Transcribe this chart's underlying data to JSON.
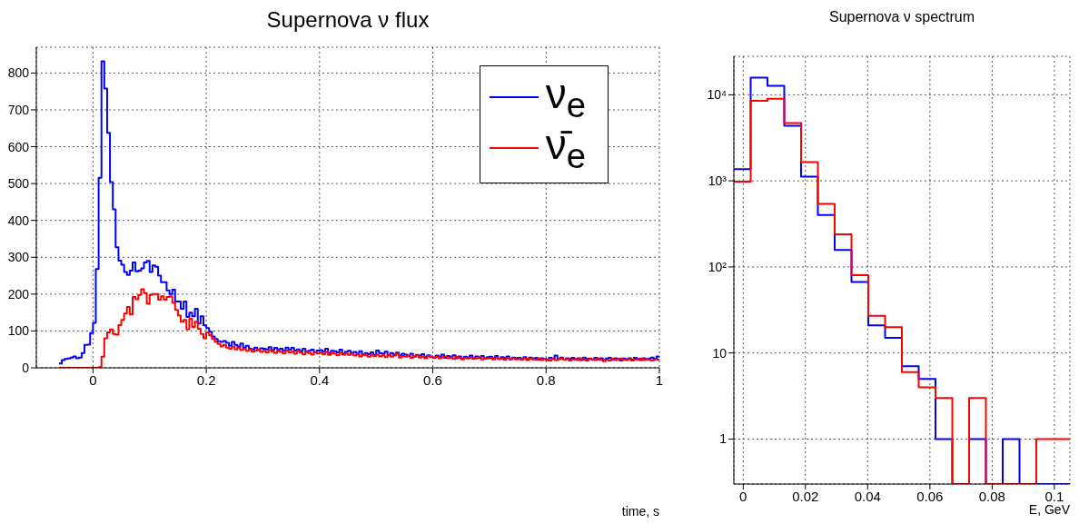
{
  "chart_data": [
    {
      "type": "histogram",
      "title": "Supernova ν flux",
      "xlabel": "time, s",
      "grid": true,
      "legend": "top right",
      "bins": [
        -0.06,
        -0.055,
        -0.05,
        -0.045,
        -0.04,
        -0.035,
        -0.03,
        -0.025,
        -0.02,
        -0.015,
        -0.01,
        -0.005,
        0,
        0.005,
        0.01,
        0.015,
        0.02,
        0.025,
        0.03,
        0.035,
        0.04,
        0.045,
        0.05,
        0.055,
        0.06,
        0.065,
        0.07,
        0.075,
        0.08,
        0.085,
        0.09,
        0.095,
        0.1,
        0.105,
        0.11,
        0.115,
        0.12,
        0.125,
        0.13,
        0.135,
        0.14,
        0.145,
        0.15,
        0.155,
        0.16,
        0.165,
        0.17,
        0.175,
        0.18,
        0.185,
        0.19,
        0.195,
        0.2,
        0.205,
        0.21,
        0.215,
        0.22,
        0.225,
        0.23,
        0.235,
        0.24,
        0.245,
        0.25,
        0.255,
        0.26,
        0.265,
        0.27,
        0.275,
        0.28,
        0.285,
        0.29,
        0.295,
        0.3,
        0.305,
        0.31,
        0.315,
        0.32,
        0.325,
        0.33,
        0.335,
        0.34,
        0.345,
        0.35,
        0.355,
        0.36,
        0.365,
        0.37,
        0.375,
        0.38,
        0.385,
        0.39,
        0.395,
        0.4,
        0.405,
        0.41,
        0.415,
        0.42,
        0.425,
        0.43,
        0.435,
        0.44,
        0.445,
        0.45,
        0.455,
        0.46,
        0.465,
        0.47,
        0.475,
        0.48,
        0.485,
        0.49,
        0.495,
        0.5,
        0.505,
        0.51,
        0.515,
        0.52,
        0.525,
        0.53,
        0.535,
        0.54,
        0.545,
        0.55,
        0.555,
        0.56,
        0.565,
        0.57,
        0.575,
        0.58,
        0.585,
        0.59,
        0.595,
        0.6,
        0.605,
        0.61,
        0.615,
        0.62,
        0.625,
        0.63,
        0.635,
        0.64,
        0.645,
        0.65,
        0.655,
        0.66,
        0.665,
        0.67,
        0.675,
        0.68,
        0.685,
        0.69,
        0.695,
        0.7,
        0.705,
        0.71,
        0.715,
        0.72,
        0.725,
        0.73,
        0.735,
        0.74,
        0.745,
        0.75,
        0.755,
        0.76,
        0.765,
        0.77,
        0.775,
        0.78,
        0.785,
        0.79,
        0.795,
        0.8,
        0.805,
        0.81,
        0.815,
        0.82,
        0.825,
        0.83,
        0.835,
        0.84,
        0.845,
        0.85,
        0.855,
        0.86,
        0.865,
        0.87,
        0.875,
        0.88,
        0.885,
        0.89,
        0.895,
        0.9,
        0.905,
        0.91,
        0.915,
        0.92,
        0.925,
        0.93,
        0.935,
        0.94,
        0.945,
        0.95,
        0.955,
        0.96,
        0.965,
        0.97,
        0.975,
        0.98,
        0.985,
        0.99,
        0.995,
        1
      ],
      "series": [
        {
          "name": "ν$_{e}$",
          "color": "#0000ff",
          "values": [
            12,
            21,
            24,
            25,
            28,
            31,
            26,
            28,
            40,
            62,
            63,
            94,
            122,
            268,
            516,
            832,
            758,
            638,
            504,
            430,
            327,
            291,
            280,
            260,
            252,
            264,
            286,
            262,
            264,
            270,
            286,
            290,
            260,
            278,
            274,
            250,
            232,
            232,
            210,
            200,
            212,
            180,
            180,
            160,
            180,
            138,
            150,
            140,
            160,
            120,
            140,
            115,
            108,
            98,
            85,
            78,
            72,
            70,
            73,
            68,
            60,
            70,
            62,
            58,
            66,
            55,
            60,
            52,
            50,
            55,
            48,
            53,
            52,
            50,
            56,
            48,
            54,
            50,
            52,
            46,
            55,
            49,
            54,
            47,
            50,
            45,
            52,
            44,
            46,
            49,
            42,
            47,
            48,
            44,
            52,
            40,
            46,
            45,
            42,
            49,
            38,
            44,
            46,
            40,
            43,
            38,
            45,
            36,
            40,
            37,
            42,
            35,
            47,
            40,
            38,
            44,
            34,
            40,
            36,
            41,
            33,
            38,
            36,
            32,
            38,
            30,
            35,
            33,
            37,
            29,
            34,
            31,
            28,
            33,
            30,
            36,
            27,
            32,
            29,
            34,
            26,
            31,
            25,
            30,
            28,
            33,
            26,
            31,
            27,
            32,
            25,
            29,
            30,
            26,
            32,
            24,
            29,
            27,
            31,
            23,
            28,
            26,
            27,
            24,
            29,
            23,
            28,
            25,
            27,
            22,
            26,
            24,
            21,
            27,
            25,
            33,
            24,
            28,
            22,
            26,
            24,
            27,
            23,
            26,
            21,
            28,
            24,
            25,
            22,
            27,
            23,
            26,
            21,
            25,
            27,
            22,
            26,
            24,
            20,
            25,
            23,
            26,
            22,
            27,
            24,
            21,
            26,
            23,
            25,
            28,
            24,
            31
          ]
        },
        {
          "name": "ν̄$_{e}$",
          "color": "#ff0000",
          "values": [
            0,
            0,
            0,
            0,
            0,
            0,
            0,
            0,
            0,
            0,
            0,
            0,
            0,
            0,
            2,
            30,
            80,
            96,
            104,
            92,
            90,
            116,
            130,
            147,
            165,
            145,
            192,
            186,
            198,
            213,
            203,
            174,
            198,
            200,
            200,
            185,
            194,
            185,
            192,
            194,
            176,
            157,
            142,
            125,
            130,
            105,
            133,
            111,
            125,
            106,
            92,
            80,
            96,
            88,
            78,
            70,
            65,
            58,
            62,
            55,
            52,
            57,
            50,
            54,
            48,
            52,
            46,
            50,
            44,
            47,
            49,
            43,
            46,
            42,
            48,
            44,
            40,
            45,
            43,
            39,
            47,
            42,
            44,
            38,
            46,
            41,
            37,
            43,
            40,
            36,
            42,
            39,
            41,
            37,
            43,
            35,
            40,
            38,
            34,
            41,
            36,
            39,
            35,
            38,
            33,
            37,
            31,
            36,
            34,
            30,
            35,
            32,
            36,
            31,
            34,
            29,
            35,
            30,
            33,
            38,
            28,
            32,
            30,
            33,
            27,
            31,
            34,
            28,
            30,
            26,
            32,
            29,
            27,
            30,
            25,
            29,
            31,
            26,
            28,
            24,
            30,
            27,
            23,
            27,
            25,
            28,
            24,
            26,
            29,
            23,
            27,
            25,
            26,
            23,
            28,
            24,
            25,
            22,
            27,
            24,
            26,
            23,
            24,
            22,
            26,
            21,
            25,
            23,
            22,
            25,
            21,
            24,
            22,
            20,
            24,
            21,
            23,
            25,
            22,
            24,
            20,
            23,
            24,
            21,
            25,
            22,
            20,
            24,
            23,
            21,
            25,
            22,
            18,
            22,
            20,
            24,
            21,
            23,
            25,
            22,
            21,
            24,
            20,
            23,
            22,
            25,
            21,
            24,
            22,
            20,
            23,
            22
          ]
        }
      ],
      "xlim": [
        -0.1,
        1
      ],
      "xticks": [
        0,
        0.2,
        0.4,
        0.6,
        0.8,
        1
      ],
      "ylim": [
        0,
        870
      ],
      "yticks": [
        0,
        100,
        200,
        300,
        400,
        500,
        600,
        700,
        800
      ]
    },
    {
      "type": "histogram",
      "title": "Supernova ν spectrum",
      "xlabel": "E, GeV",
      "grid": true,
      "log": "y",
      "bins": [
        -0.003,
        0.0024,
        0.0078,
        0.0132,
        0.0186,
        0.024,
        0.0294,
        0.0348,
        0.0402,
        0.0456,
        0.051,
        0.0564,
        0.0618,
        0.0672,
        0.0726,
        0.078,
        0.0834,
        0.0888,
        0.0942,
        0.0996,
        0.105
      ],
      "series": [
        {
          "color": "#0000ff",
          "values": [
            1370,
            15800,
            12700,
            4360,
            1120,
            400,
            157,
            67,
            21,
            15,
            7,
            5,
            1,
            null,
            1,
            null,
            1,
            null,
            null,
            null
          ]
        },
        {
          "color": "#ff0000",
          "values": [
            980,
            8500,
            9000,
            4700,
            1650,
            540,
            240,
            80,
            27,
            20,
            6,
            4,
            3,
            null,
            3,
            null,
            null,
            null,
            1,
            1
          ]
        }
      ],
      "xlim": [
        -0.003,
        0.105
      ],
      "xticks": [
        0,
        0.02,
        0.04,
        0.06,
        0.08,
        0.1
      ],
      "ylim": [
        0.3,
        28000
      ],
      "yticks": [
        {
          "value": 1,
          "label": "1"
        },
        {
          "value": 10,
          "label": "10"
        },
        {
          "value": 100,
          "label": "10²"
        },
        {
          "value": 1000,
          "label": "10³"
        },
        {
          "value": 10000,
          "label": "10⁴"
        }
      ]
    }
  ]
}
